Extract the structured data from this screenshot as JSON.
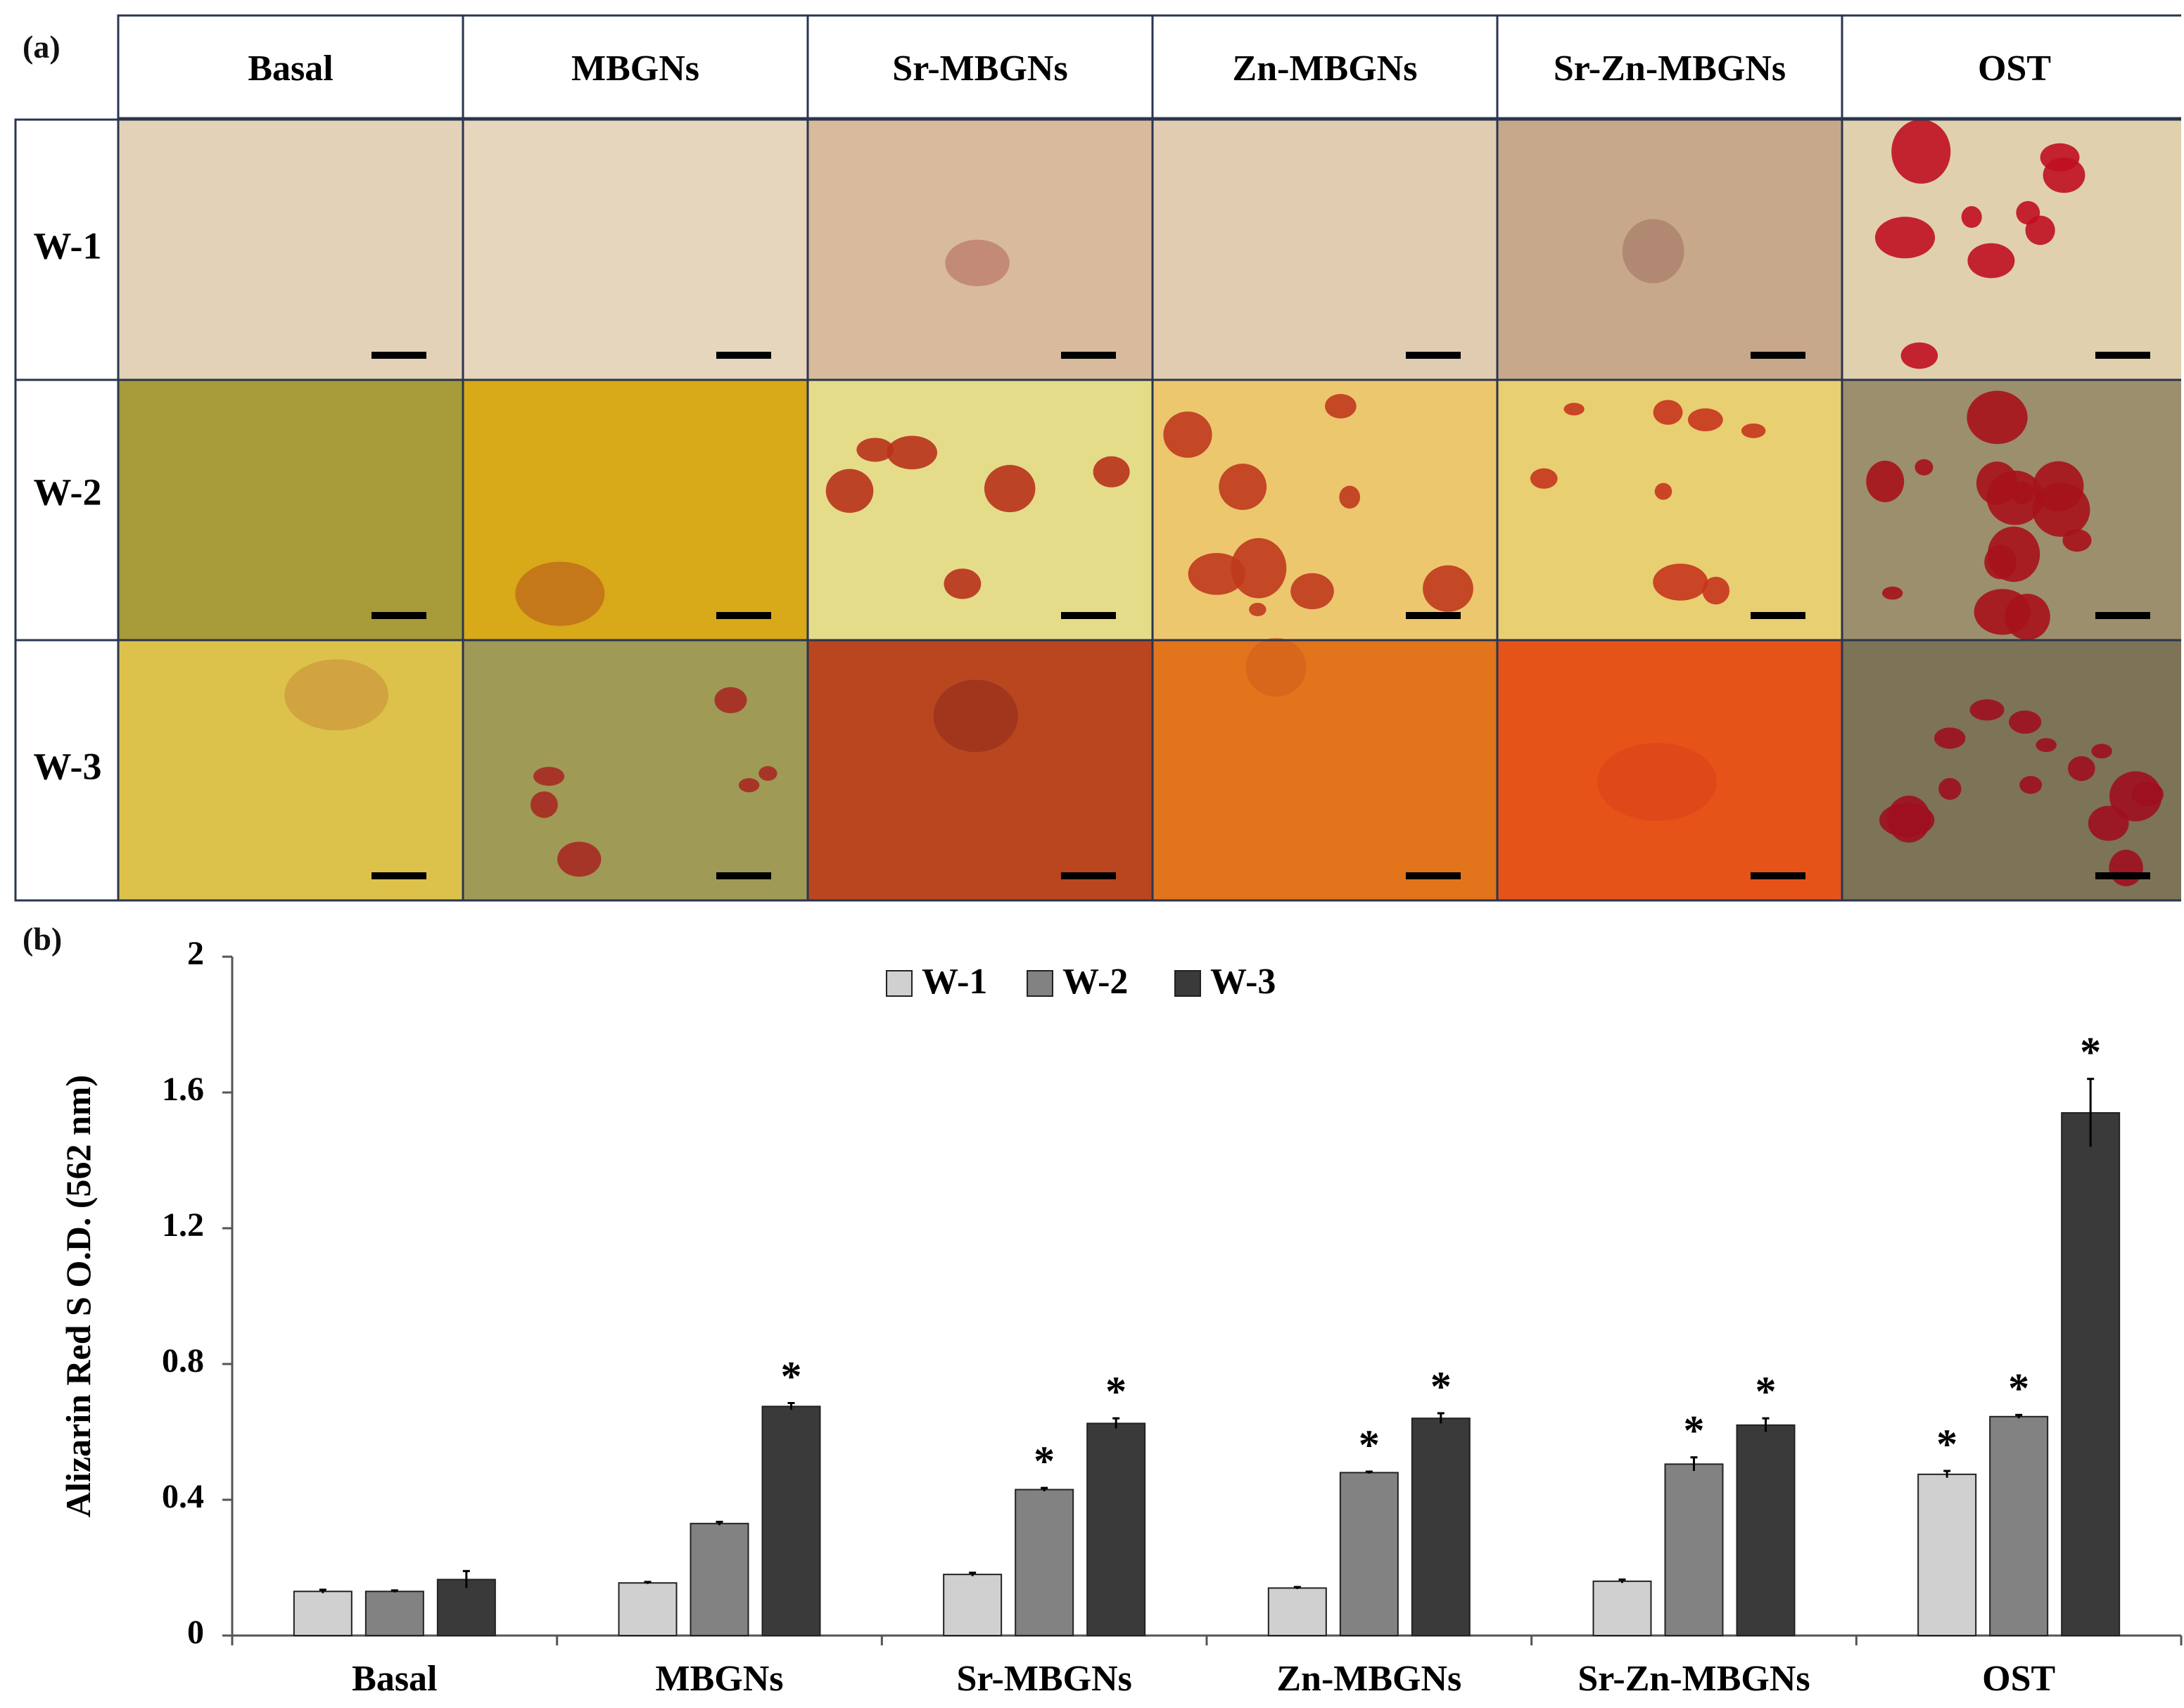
{
  "panel_a": {
    "label": "(a)",
    "columns": [
      "Basal",
      "MBGNs",
      "Sr-MBGNs",
      "Zn-MBGNs",
      "Sr-Zn-MBGNs",
      "OST"
    ],
    "rows": [
      "W-1",
      "W-2",
      "W-3"
    ],
    "cells": [
      [
        {
          "bg": "#e3d2b8",
          "stain": "#c9a17e",
          "spots": 0
        },
        {
          "bg": "#e6d6bd",
          "stain": "#cfa583",
          "spots": 0
        },
        {
          "bg": "#d8bb9c",
          "stain": "#b3645a",
          "spots": 1
        },
        {
          "bg": "#e0cdb1",
          "stain": "#c3a282",
          "spots": 0
        },
        {
          "bg": "#c7a88a",
          "stain": "#9e6f5e",
          "spots": 1
        },
        {
          "bg": "#e0d0ae",
          "stain": "#c01020",
          "spots": 9
        }
      ],
      [
        {
          "bg": "#a79b3a",
          "stain": "#8c8a36",
          "spots": 0
        },
        {
          "bg": "#d8a918",
          "stain": "#b7511c",
          "spots": 1
        },
        {
          "bg": "#e5dc8a",
          "stain": "#b8321c",
          "spots": 6
        },
        {
          "bg": "#ecc76e",
          "stain": "#c0381e",
          "spots": 9
        },
        {
          "bg": "#e8cf72",
          "stain": "#c6341e",
          "spots": 8
        },
        {
          "bg": "#9c8f6e",
          "stain": "#a71219",
          "spots": 14
        }
      ],
      [
        {
          "bg": "#dcc24a",
          "stain": "#c98b3a",
          "spots": 1
        },
        {
          "bg": "#9f9a55",
          "stain": "#a62a24",
          "spots": 6
        },
        {
          "bg": "#b9461f",
          "stain": "#8e2a1a",
          "spots": 1
        },
        {
          "bg": "#e2741c",
          "stain": "#d05b1c",
          "spots": 1
        },
        {
          "bg": "#e65319",
          "stain": "#d8401a",
          "spots": 1
        },
        {
          "bg": "#7d7356",
          "stain": "#9e0f20",
          "spots": 14
        }
      ]
    ]
  },
  "chart_data": {
    "panel_label": "(b)",
    "type": "bar",
    "categories": [
      "Basal",
      "MBGNs",
      "Sr-MBGNs",
      "Zn-MBGNs",
      "Sr-Zn-MBGNs",
      "OST"
    ],
    "series": [
      {
        "name": "W-1",
        "color": "#d0d0d0",
        "values": [
          0.13,
          0.155,
          0.18,
          0.14,
          0.16,
          0.475
        ],
        "errors": [
          0.005,
          0.003,
          0.005,
          0.003,
          0.005,
          0.01
        ],
        "significant": [
          false,
          false,
          false,
          false,
          false,
          true
        ]
      },
      {
        "name": "W-2",
        "color": "#828282",
        "values": [
          0.13,
          0.33,
          0.43,
          0.48,
          0.505,
          0.645
        ],
        "errors": [
          0.003,
          0.005,
          0.005,
          0.003,
          0.02,
          0.005
        ],
        "significant": [
          false,
          false,
          true,
          true,
          true,
          true
        ]
      },
      {
        "name": "W-3",
        "color": "#3a3a3a",
        "values": [
          0.165,
          0.675,
          0.625,
          0.64,
          0.62,
          1.54
        ],
        "errors": [
          0.025,
          0.01,
          0.015,
          0.015,
          0.02,
          0.1
        ],
        "significant": [
          false,
          true,
          true,
          true,
          true,
          true
        ]
      }
    ],
    "significance_marker": "*",
    "ylabel": "Alizarin Red S O.D. (562 nm)",
    "xlabel": "",
    "ylim": [
      0,
      2
    ],
    "yticks": [
      0,
      0.4,
      0.8,
      1.2,
      1.6,
      2
    ],
    "ytick_labels": [
      "0",
      "0.4",
      "0.8",
      "1.2",
      "1.6",
      "2"
    ],
    "legend_position": "top-center",
    "grid": false
  }
}
